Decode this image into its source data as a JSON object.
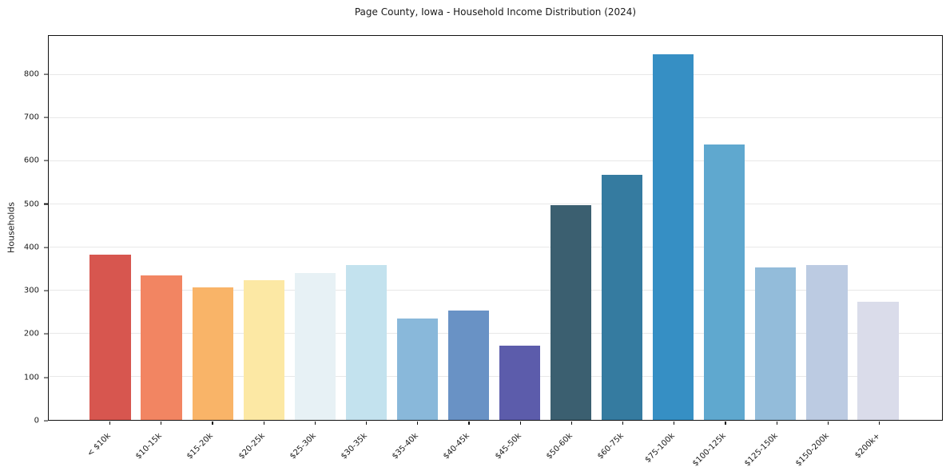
{
  "title": "Page County, Iowa - Household Income Distribution (2024)",
  "chart_data": {
    "type": "bar",
    "title": "Page County, Iowa - Household Income Distribution (2024)",
    "xlabel": "",
    "ylabel": "Households",
    "categories": [
      "< $10k",
      "$10-15k",
      "$15-20k",
      "$20-25k",
      "$25-30k",
      "$30-35k",
      "$35-40k",
      "$40-45k",
      "$45-50k",
      "$50-60k",
      "$60-75k",
      "$75-100k",
      "$100-125k",
      "$125-150k",
      "$150-200k",
      "$200k+"
    ],
    "values": [
      383,
      335,
      307,
      324,
      340,
      359,
      235,
      254,
      172,
      498,
      568,
      848,
      638,
      353,
      359,
      273
    ],
    "bar_colors": [
      "#d7564f",
      "#f28562",
      "#f9b468",
      "#fce8a4",
      "#e7f1f5",
      "#c3e2ee",
      "#89b8da",
      "#6992c5",
      "#5c5cab",
      "#3b5f70",
      "#357ba0",
      "#368fc4",
      "#5fa8cf",
      "#93bcda",
      "#bccbe2",
      "#dadcea"
    ],
    "ylim": [
      0,
      890
    ],
    "yticks": [
      0,
      100,
      200,
      300,
      400,
      500,
      600,
      700,
      800
    ],
    "grid": "horizontal",
    "legend": "none",
    "background_color": "#ffffff",
    "gridline_color": "#e8e8e8",
    "spine_color": "#111111",
    "text_color": "#1a1a1a"
  }
}
